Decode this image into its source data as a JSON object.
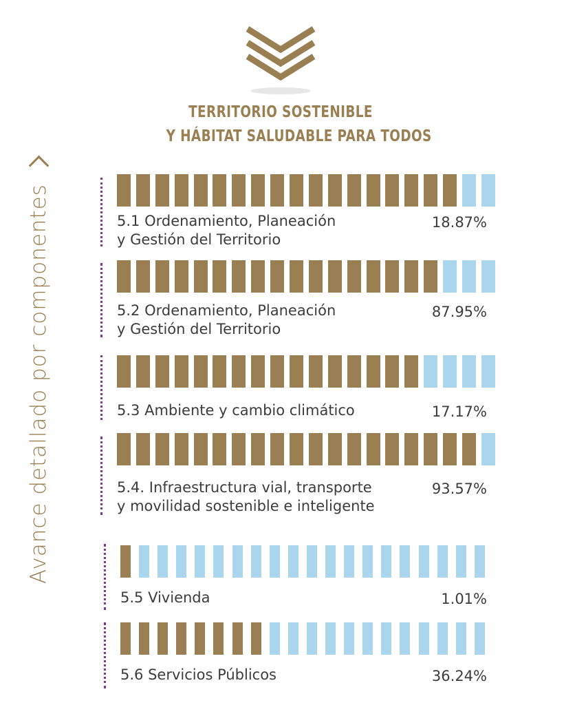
{
  "header": {
    "title_line1": "TERRITORIO SOSTENIBLE",
    "title_line2": "Y HÁBITAT SALUDABLE PARA TODOS",
    "side_label": "Avance detallado por  componentes",
    "icon": "triple-chevron-down-icon"
  },
  "colors": {
    "progress": "#9a7f52",
    "remaining": "#a9d6ec",
    "dots": "#7b3a8b",
    "title": "#9a7f52"
  },
  "chart_data": {
    "type": "bar",
    "title": "TERRITORIO SOSTENIBLE Y HÁBITAT SALUDABLE PARA TODOS",
    "ylabel": "Avance detallado por  componentes",
    "categories": [
      "5.1 Ordenamiento, Planeación y Gestión del Territorio",
      "5.2 Ordenamiento, Planeación y Gestión del Territorio",
      "5.3 Ambiente y cambio climático",
      "5.4. Infraestructura vial, transporte y movilidad sostenible e inteligente",
      "5.5 Vivienda",
      "5.6 Servicios Públicos"
    ],
    "values": [
      18.87,
      87.95,
      17.17,
      93.57,
      1.01,
      36.24
    ],
    "value_labels": [
      "18.87%",
      "87.95%",
      "17.17%",
      "93.57%",
      "1.01%",
      "36.24%"
    ],
    "items": [
      {
        "label": "5.1 Ordenamiento, Planeación\ny Gestión del Territorio",
        "value_label": "18.87%",
        "segments": 20,
        "filled": 18
      },
      {
        "label": "5.2 Ordenamiento, Planeación\ny Gestión del Territorio",
        "value_label": "87.95%",
        "segments": 20,
        "filled": 17
      },
      {
        "label": "5.3 Ambiente y cambio climático",
        "value_label": "17.17%",
        "segments": 20,
        "filled": 16
      },
      {
        "label": "5.4. Infraestructura vial, transporte\ny movilidad sostenible e inteligente",
        "value_label": "93.57%",
        "segments": 20,
        "filled": 19
      },
      {
        "label": "5.5 Vivienda",
        "value_label": "1.01%",
        "segments": 20,
        "filled": 1
      },
      {
        "label": "5.6 Servicios Públicos",
        "value_label": "36.24%",
        "segments": 20,
        "filled": 8
      }
    ]
  }
}
